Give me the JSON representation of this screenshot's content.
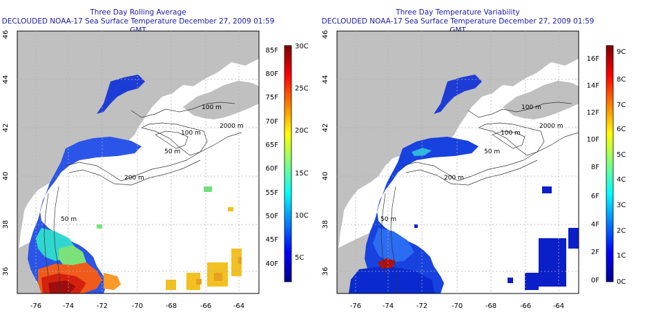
{
  "left_panel": {
    "title_line1": "Three Day Rolling Average",
    "title_line2": "DECLOUDED NOAA-17 Sea Surface Temperature December 27, 2009 01:59 GMT",
    "colorbar_fahrenheit": [
      "85F",
      "80F",
      "75F",
      "70F",
      "65F",
      "60F",
      "55F",
      "50F",
      "45F",
      "40F"
    ],
    "colorbar_celsius": [
      "30C",
      "25C",
      "20C",
      "15C",
      "10C",
      "5C"
    ]
  },
  "right_panel": {
    "title_line1": "Three Day Temperature Variability",
    "title_line2": "DECLOUDED NOAA-17 Sea Surface Temperature December 27, 2009 01:59 GMT",
    "colorbar_fahrenheit": [
      "16F",
      "14F",
      "12F",
      "10F",
      "8F",
      "6F",
      "4F",
      "2F",
      "0F"
    ],
    "colorbar_celsius": [
      "9C",
      "8C",
      "7C",
      "6C",
      "5C",
      "4C",
      "3C",
      "2C",
      "1C",
      "0C"
    ]
  },
  "axes": {
    "longitude_ticks": [
      "-76",
      "-74",
      "-72",
      "-70",
      "-68",
      "-66",
      "-64"
    ],
    "latitude_ticks": [
      "46",
      "44",
      "42",
      "40",
      "38",
      "36"
    ]
  },
  "contour_labels": [
    "100 m",
    "100 m",
    "2000 m",
    "50 m",
    "200 m",
    "50 m"
  ],
  "colors": {
    "land": "#c0c0c0",
    "water": "#ffffff",
    "title": "#1a1aa6",
    "grid": "#b0b0b0"
  }
}
